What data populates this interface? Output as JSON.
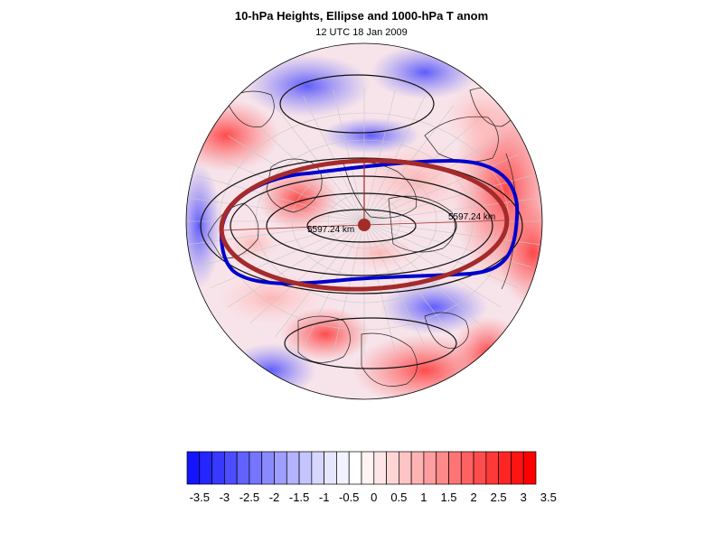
{
  "header": {
    "title": "10-hPa Heights, Ellipse and 1000-hPa T anom",
    "subtitle": "12 UTC 18 Jan 2009"
  },
  "map": {
    "ellipse_color": "#a52a2a",
    "edge_contour_color": "#0000cd",
    "left_axis_label": "5597.24 km",
    "right_axis_label": "5597.24 km"
  },
  "colorbar": {
    "levels": [
      "-3.5",
      "-3",
      "-2.5",
      "-2",
      "-1.5",
      "-1",
      "-0.5",
      "0",
      "0.5",
      "1",
      "1.5",
      "2",
      "2.5",
      "3",
      "3.5"
    ],
    "colors": [
      "#1414ff",
      "#2525ff",
      "#3838ff",
      "#4d4dff",
      "#6161ff",
      "#7575ff",
      "#8a8aff",
      "#9e9eff",
      "#b3b3ff",
      "#c4c4ff",
      "#d6d6ff",
      "#e6e6ff",
      "#f3f3ff",
      "#ffffff",
      "#fff3f3",
      "#ffe6e6",
      "#ffd6d6",
      "#ffc4c4",
      "#ffb3b3",
      "#ff9e9e",
      "#ff8a8a",
      "#ff7575",
      "#ff6161",
      "#ff4d4d",
      "#ff3838",
      "#ff2525",
      "#ff1414",
      "#ff0000"
    ]
  }
}
